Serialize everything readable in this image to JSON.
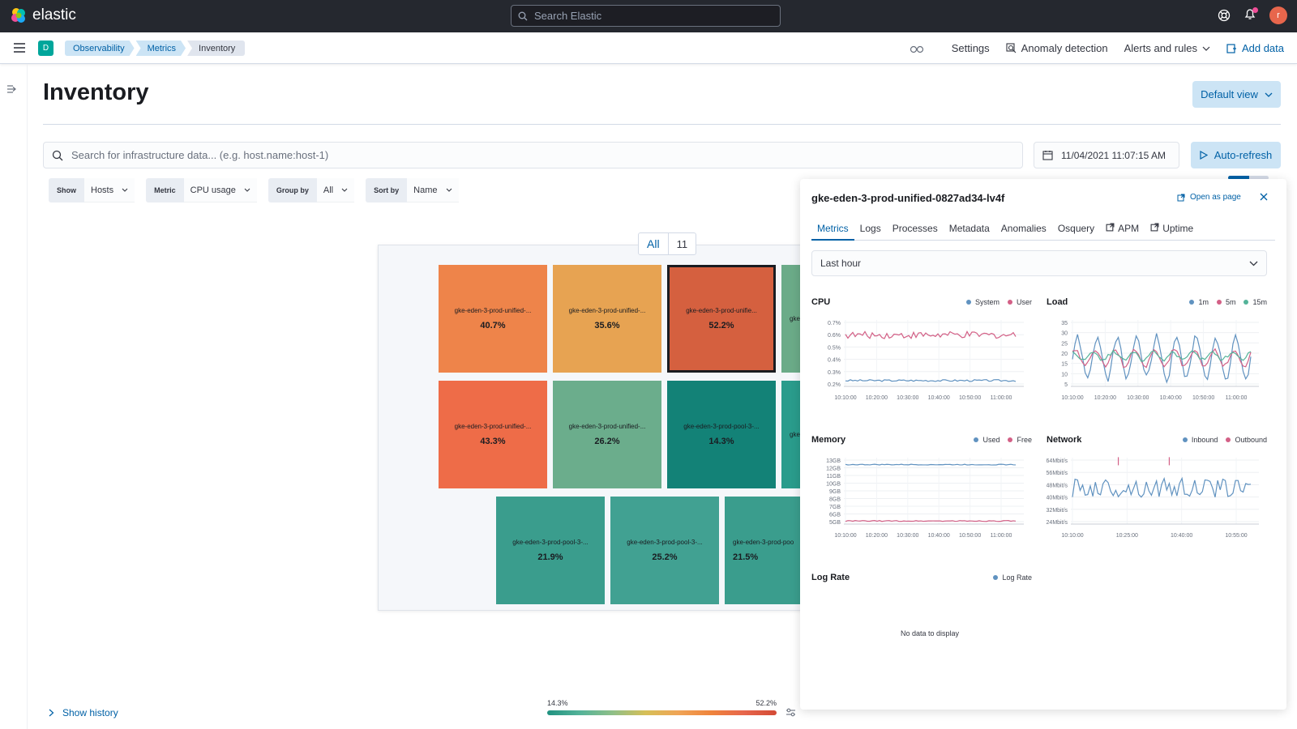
{
  "app": {
    "name": "elastic",
    "search_placeholder": "Search Elastic",
    "user_initial": "r",
    "space_initial": "D"
  },
  "breadcrumbs": [
    "Observability",
    "Metrics",
    "Inventory"
  ],
  "nav": {
    "settings": "Settings",
    "anomaly": "Anomaly detection",
    "alerts": "Alerts and rules",
    "add_data": "Add data"
  },
  "page": {
    "title": "Inventory",
    "default_view": "Default view"
  },
  "search": {
    "placeholder": "Search for infrastructure data... (e.g. host.name:host-1)"
  },
  "datetime": "11/04/2021 11:07:15 AM",
  "auto_refresh": "Auto-refresh",
  "filters": {
    "show": {
      "label": "Show",
      "value": "Hosts"
    },
    "metric": {
      "label": "Metric",
      "value": "CPU usage"
    },
    "group": {
      "label": "Group by",
      "value": "All"
    },
    "sort": {
      "label": "Sort by",
      "value": "Name"
    }
  },
  "legend_toggle": {
    "all": "All",
    "count": "11"
  },
  "tiles": [
    {
      "name": "gke-eden-3-prod-unified-...",
      "value": "40.7%",
      "color": "#ee844a"
    },
    {
      "name": "gke-eden-3-prod-unified-...",
      "value": "35.6%",
      "color": "#e7a352"
    },
    {
      "name": "gke-eden-3-prod-unifie...",
      "value": "52.2%",
      "color": "#d5603f"
    },
    {
      "name": "gke",
      "value": "",
      "color": "#6bab88"
    },
    {
      "name": "gke-eden-3-prod-unified-...",
      "value": "43.3%",
      "color": "#ee6c48"
    },
    {
      "name": "gke-eden-3-prod-unified-...",
      "value": "26.2%",
      "color": "#6bad8c"
    },
    {
      "name": "gke-eden-3-prod-pool-3-...",
      "value": "14.3%",
      "color": "#138277"
    },
    {
      "name": "gke",
      "value": "",
      "color": "#2a9c8c"
    },
    {
      "name": "gke-eden-3-prod-pool-3-...",
      "value": "21.9%",
      "color": "#3a9d8d"
    },
    {
      "name": "gke-eden-3-prod-pool-3-...",
      "value": "25.2%",
      "color": "#41a192"
    },
    {
      "name": "gke-eden-3-prod-poo",
      "value": "21.5%",
      "color": "#3a9d8d"
    }
  ],
  "show_history": "Show history",
  "gradient": {
    "min": "14.3%",
    "max": "52.2%"
  },
  "flyout": {
    "title": "gke-eden-3-prod-unified-0827ad34-lv4f",
    "open_as_page": "Open as page",
    "tabs": [
      "Metrics",
      "Logs",
      "Processes",
      "Metadata",
      "Anomalies",
      "Osquery",
      "APM",
      "Uptime"
    ],
    "time_range": "Last hour",
    "no_data": "No data to display"
  },
  "chart_data": [
    {
      "type": "line",
      "title": "CPU",
      "x": [
        "10:10:00",
        "10:20:00",
        "10:30:00",
        "10:40:00",
        "10:50:00",
        "11:00:00"
      ],
      "y_ticks": [
        "0.7%",
        "0.6%",
        "0.5%",
        "0.4%",
        "0.3%",
        "0.2%"
      ],
      "ylim": [
        0.15,
        0.72
      ],
      "series": [
        {
          "name": "System",
          "color": "#6092c0",
          "base": 0.2,
          "amp": 0.008
        },
        {
          "name": "User",
          "color": "#d36086",
          "base": 0.59,
          "amp": 0.03
        }
      ]
    },
    {
      "type": "line",
      "title": "Load",
      "x": [
        "10:10:00",
        "10:20:00",
        "10:30:00",
        "10:40:00",
        "10:50:00",
        "11:00:00"
      ],
      "y_ticks": [
        "35",
        "30",
        "25",
        "20",
        "15",
        "10",
        "5"
      ],
      "ylim": [
        2,
        37
      ],
      "series": [
        {
          "name": "1m",
          "color": "#6092c0",
          "base": 17,
          "amp": 13
        },
        {
          "name": "5m",
          "color": "#d36086",
          "base": 17,
          "amp": 5
        },
        {
          "name": "15m",
          "color": "#54b399",
          "base": 18,
          "amp": 2.5
        }
      ]
    },
    {
      "type": "line",
      "title": "Memory",
      "x": [
        "10:10:00",
        "10:20:00",
        "10:30:00",
        "10:40:00",
        "10:50:00",
        "11:00:00"
      ],
      "y_ticks": [
        "13GB",
        "12GB",
        "11GB",
        "10GB",
        "9GB",
        "8GB",
        "7GB",
        "6GB",
        "5GB"
      ],
      "ylim": [
        4.6,
        13.2
      ],
      "series": [
        {
          "name": "Used",
          "color": "#6092c0",
          "base": 12.3,
          "amp": 0.05
        },
        {
          "name": "Free",
          "color": "#d36086",
          "base": 5.0,
          "amp": 0.06
        }
      ]
    },
    {
      "type": "line",
      "title": "Network",
      "x": [
        "10:10:00",
        "10:25:00",
        "10:40:00",
        "10:55:00"
      ],
      "y_ticks": [
        "64Mbit/s",
        "56Mbit/s",
        "48Mbit/s",
        "40Mbit/s",
        "32Mbit/s",
        "24Mbit/s"
      ],
      "ylim": [
        20,
        68
      ],
      "series": [
        {
          "name": "Inbound",
          "color": "#6092c0",
          "base": 46,
          "amp": 7
        },
        {
          "name": "Outbound",
          "color": "#d36086",
          "base": 64,
          "amp": 0.4
        }
      ]
    },
    {
      "type": "line",
      "title": "Log Rate",
      "series": [
        {
          "name": "Log Rate",
          "color": "#6092c0"
        }
      ]
    }
  ]
}
